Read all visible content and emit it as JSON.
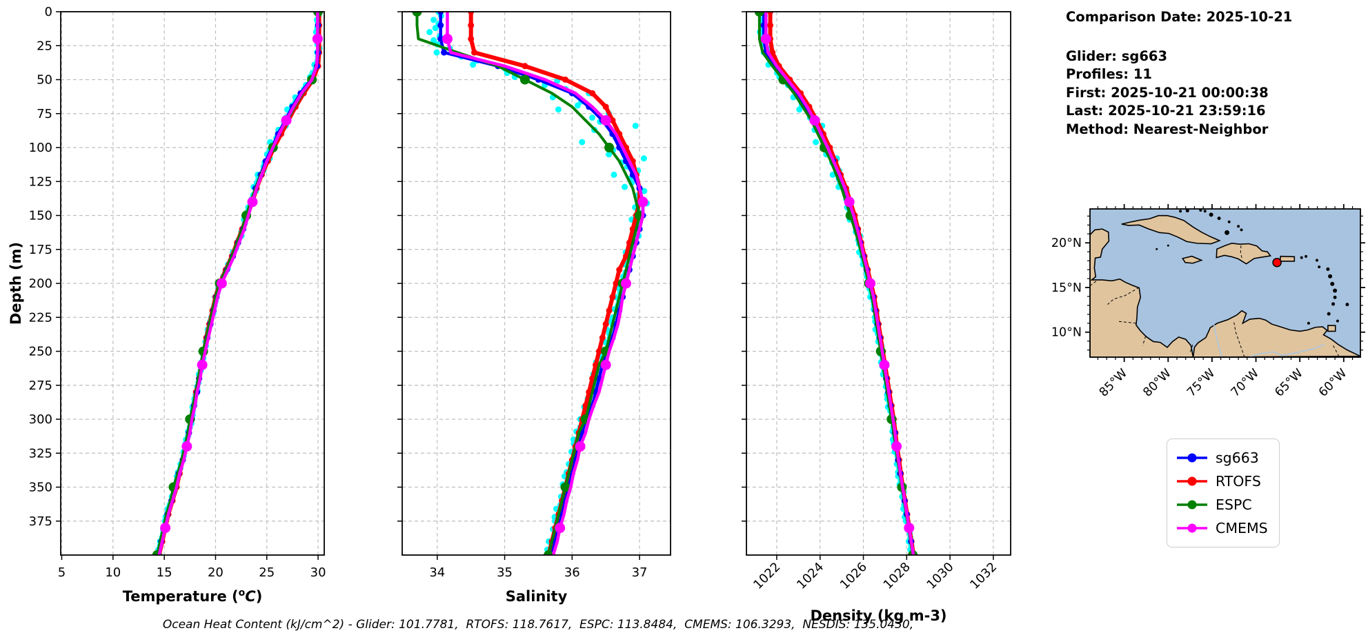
{
  "info": {
    "title": "Comparison Date: 2025-10-21",
    "lines": [
      "Glider: sg663",
      "Profiles: 11",
      "First: 2025-10-21 00:00:38",
      "Last: 2025-10-21 23:59:16",
      "Method: Nearest-Neighbor"
    ]
  },
  "footer": "Ocean Heat Content (kJ/cm^2) - Glider: 101.7781,  RTOFS: 118.7617,  ESPC: 113.8484,  CMEMS: 106.3293,  NESDIS: 135.0430,",
  "legend": {
    "items": [
      {
        "label": "sg663",
        "color": "#0000ff"
      },
      {
        "label": "RTOFS",
        "color": "#ff0000"
      },
      {
        "label": "ESPC",
        "color": "#008000"
      },
      {
        "label": "CMEMS",
        "color": "#ff00ff"
      }
    ]
  },
  "map": {
    "extent": {
      "lon_min": -88.9,
      "lon_max": -58.1,
      "lat_min": 7.2,
      "lat_max": 23.8
    },
    "lon_tick_values": [
      -85,
      -80,
      -75,
      -70,
      -65,
      -60
    ],
    "lon_tick_labels": [
      "85°W",
      "80°W",
      "75°W",
      "70°W",
      "65°W",
      "60°W"
    ],
    "lat_tick_values": [
      20,
      15,
      10
    ],
    "lat_tick_labels": [
      "20°N",
      "15°N",
      "10°N"
    ],
    "marker": {
      "lon": -67.6,
      "lat": 17.8,
      "color": "#ff0000"
    },
    "land_color": "#e0c49e",
    "ocean_color": "#a8c3df"
  },
  "chart_data": {
    "type": "line",
    "orientation": "vertical-profile",
    "ylabel": "Depth (m)",
    "depth_range": [
      0,
      400
    ],
    "depth_ticks": [
      0,
      25,
      50,
      75,
      100,
      125,
      150,
      175,
      200,
      225,
      250,
      275,
      300,
      325,
      350,
      375
    ],
    "depth_m": [
      0,
      10,
      20,
      30,
      40,
      50,
      60,
      70,
      80,
      90,
      100,
      110,
      120,
      130,
      140,
      150,
      160,
      170,
      180,
      190,
      200,
      210,
      220,
      230,
      240,
      250,
      260,
      270,
      280,
      290,
      300,
      310,
      320,
      330,
      340,
      350,
      360,
      370,
      380,
      390,
      400
    ],
    "grid": true,
    "legend_position": "lower-right-of-figure",
    "panels": [
      {
        "id": "temperature",
        "xlabel": {
          "prefix": "Temperature (",
          "sup": "o",
          "italic": "C",
          "suffix": ")"
        },
        "xlim": [
          4.9,
          30.6
        ],
        "x_ticks": [
          5,
          10,
          15,
          20,
          25,
          30
        ],
        "x_tick_rotation": 0,
        "scatter": {
          "name": "glider-raw-points",
          "color": "#00ffff",
          "base": 0.1,
          "extra": 0.28,
          "center_depth": 85,
          "width": 55,
          "offset": -0.05
        },
        "series": [
          {
            "name": "sg663",
            "color": "#0000ff",
            "values": [
              30,
              30,
              30,
              30,
              29.9,
              29.3,
              28.3,
              27.5,
              26.8,
              26.1,
              25.5,
              24.9,
              24.4,
              23.9,
              23.5,
              23.1,
              22.7,
              22.2,
              21.7,
              21.1,
              20.5,
              20.1,
              19.8,
              19.5,
              19.2,
              18.9,
              18.7,
              18.4,
              18.2,
              17.9,
              17.7,
              17.4,
              17.1,
              16.8,
              16.4,
              16.1,
              15.7,
              15.3,
              15,
              14.7,
              14.4
            ]
          },
          {
            "name": "RTOFS",
            "color": "#ff0000",
            "values": [
              30.1,
              30.1,
              30.1,
              30.1,
              30,
              29.5,
              28.6,
              27.8,
              27.1,
              26.4,
              25.7,
              25.1,
              24.5,
              24,
              23.6,
              23.1,
              22.6,
              22.1,
              21.6,
              21,
              20.4,
              20,
              19.7,
              19.4,
              19.1,
              18.9,
              18.6,
              18.4,
              18.1,
              17.9,
              17.6,
              17.4,
              17.1,
              16.8,
              16.5,
              16.2,
              15.8,
              15.4,
              15.1,
              14.8,
              14.5
            ]
          },
          {
            "name": "ESPC",
            "color": "#008000",
            "values": [
              30,
              30,
              30,
              30,
              29.8,
              29.4,
              28.5,
              27.7,
              27,
              26.2,
              25.6,
              25,
              24.4,
              23.9,
              23.4,
              23,
              22.6,
              22.1,
              21.6,
              21,
              20.4,
              20,
              19.7,
              19.4,
              19.1,
              18.8,
              18.6,
              18.3,
              18.1,
              17.8,
              17.5,
              17.3,
              17,
              16.7,
              16.3,
              15.9,
              15.6,
              15.2,
              14.9,
              14.6,
              14.3
            ]
          },
          {
            "name": "CMEMS",
            "color": "#ff00ff",
            "values": [
              29.95,
              29.95,
              29.95,
              29.95,
              29.85,
              29.4,
              28.4,
              27.6,
              26.9,
              26.2,
              25.6,
              25,
              24.5,
              24,
              23.6,
              23.2,
              22.8,
              22.3,
              21.8,
              21.2,
              20.6,
              20.2,
              19.9,
              19.6,
              19.3,
              19,
              18.7,
              18.5,
              18.2,
              18,
              17.7,
              17.5,
              17.2,
              16.9,
              16.5,
              16.2,
              15.8,
              15.4,
              15.1,
              14.8,
              14.5
            ]
          }
        ]
      },
      {
        "id": "salinity",
        "xlabel": {
          "prefix": "Salinity"
        },
        "xlim": [
          33.48,
          37.46
        ],
        "x_ticks": [
          34,
          35,
          36,
          37
        ],
        "x_tick_rotation": 0,
        "scatter": {
          "name": "glider-raw-points",
          "color": "#00ffff",
          "base": 0.06,
          "extra": 0.45,
          "center_depth": 80,
          "width": 45,
          "offset": -0.06
        },
        "series": [
          {
            "name": "sg663",
            "color": "#0000ff",
            "values": [
              34.05,
              34.05,
              34.05,
              34.1,
              34.9,
              35.5,
              36,
              36.25,
              36.45,
              36.6,
              36.7,
              36.8,
              36.9,
              37,
              37.05,
              37.05,
              37,
              36.95,
              36.9,
              36.85,
              36.8,
              36.75,
              36.7,
              36.65,
              36.6,
              36.5,
              36.45,
              36.4,
              36.35,
              36.3,
              36.2,
              36.15,
              36.1,
              36.05,
              36,
              35.95,
              35.9,
              35.85,
              35.8,
              35.75,
              35.7
            ]
          },
          {
            "name": "RTOFS",
            "color": "#ff0000",
            "values": [
              34.5,
              34.5,
              34.5,
              34.55,
              35.3,
              35.9,
              36.3,
              36.5,
              36.6,
              36.7,
              36.8,
              36.9,
              36.95,
              37,
              37,
              36.95,
              36.9,
              36.85,
              36.8,
              36.7,
              36.65,
              36.6,
              36.55,
              36.5,
              36.45,
              36.4,
              36.35,
              36.3,
              36.25,
              36.2,
              36.15,
              36.1,
              36.05,
              36,
              35.95,
              35.9,
              35.85,
              35.8,
              35.75,
              35.7,
              35.65
            ]
          },
          {
            "name": "ESPC",
            "color": "#008000",
            "values": [
              33.7,
              33.7,
              33.72,
              34.3,
              34.9,
              35.3,
              35.7,
              36,
              36.2,
              36.4,
              36.55,
              36.7,
              36.8,
              36.9,
              36.95,
              37,
              36.95,
              36.9,
              36.85,
              36.8,
              36.75,
              36.7,
              36.65,
              36.6,
              36.55,
              36.5,
              36.4,
              36.35,
              36.3,
              36.25,
              36.2,
              36.1,
              36.05,
              36,
              35.95,
              35.9,
              35.85,
              35.8,
              35.75,
              35.7,
              35.65
            ]
          },
          {
            "name": "CMEMS",
            "color": "#ff00ff",
            "values": [
              34.15,
              34.15,
              34.15,
              34.2,
              35,
              35.6,
              36.05,
              36.3,
              36.5,
              36.65,
              36.75,
              36.85,
              36.95,
              37,
              37.05,
              37.05,
              37,
              36.95,
              36.9,
              36.85,
              36.8,
              36.75,
              36.72,
              36.68,
              36.62,
              36.55,
              36.5,
              36.45,
              36.4,
              36.32,
              36.25,
              36.2,
              36.12,
              36.08,
              36.02,
              35.98,
              35.92,
              35.88,
              35.82,
              35.78,
              35.72
            ]
          }
        ]
      },
      {
        "id": "density",
        "xlabel": {
          "prefix": "Density (kg m-3)"
        },
        "xlim": [
          1020.6,
          1032.8
        ],
        "x_ticks": [
          1022,
          1024,
          1026,
          1028,
          1030,
          1032
        ],
        "x_tick_rotation": -45,
        "scatter": {
          "name": "glider-raw-points",
          "color": "#00ffff",
          "base": 0.09,
          "extra": 0.25,
          "center_depth": 85,
          "width": 55,
          "offset": -0.05
        },
        "series": [
          {
            "name": "sg663",
            "color": "#0000ff",
            "values": [
              1021.4,
              1021.4,
              1021.4,
              1021.5,
              1021.9,
              1022.4,
              1022.9,
              1023.3,
              1023.7,
              1024,
              1024.3,
              1024.6,
              1024.85,
              1025.1,
              1025.3,
              1025.5,
              1025.7,
              1025.85,
              1026,
              1026.15,
              1026.3,
              1026.45,
              1026.55,
              1026.65,
              1026.75,
              1026.85,
              1026.95,
              1027.05,
              1027.15,
              1027.25,
              1027.35,
              1027.45,
              1027.5,
              1027.6,
              1027.7,
              1027.8,
              1027.9,
              1028,
              1028.1,
              1028.2,
              1028.3
            ]
          },
          {
            "name": "RTOFS",
            "color": "#ff0000",
            "values": [
              1021.7,
              1021.7,
              1021.7,
              1021.8,
              1022.1,
              1022.6,
              1023.1,
              1023.5,
              1023.85,
              1024.15,
              1024.45,
              1024.7,
              1024.95,
              1025.2,
              1025.4,
              1025.6,
              1025.75,
              1025.9,
              1026.05,
              1026.2,
              1026.35,
              1026.5,
              1026.6,
              1026.7,
              1026.8,
              1026.9,
              1027,
              1027.1,
              1027.2,
              1027.3,
              1027.4,
              1027.48,
              1027.55,
              1027.65,
              1027.73,
              1027.82,
              1027.92,
              1028.02,
              1028.12,
              1028.22,
              1028.32
            ]
          },
          {
            "name": "ESPC",
            "color": "#008000",
            "values": [
              1021.2,
              1021.2,
              1021.2,
              1021.35,
              1021.8,
              1022.3,
              1022.8,
              1023.2,
              1023.6,
              1023.9,
              1024.2,
              1024.5,
              1024.75,
              1025,
              1025.2,
              1025.4,
              1025.6,
              1025.78,
              1025.95,
              1026.1,
              1026.25,
              1026.4,
              1026.5,
              1026.6,
              1026.7,
              1026.8,
              1026.9,
              1027,
              1027.1,
              1027.2,
              1027.3,
              1027.4,
              1027.48,
              1027.58,
              1027.68,
              1027.78,
              1027.88,
              1027.98,
              1028.08,
              1028.18,
              1028.28
            ]
          },
          {
            "name": "CMEMS",
            "color": "#ff00ff",
            "values": [
              1021.5,
              1021.5,
              1021.5,
              1021.6,
              1022,
              1022.5,
              1023,
              1023.4,
              1023.75,
              1024.05,
              1024.35,
              1024.62,
              1024.9,
              1025.15,
              1025.35,
              1025.55,
              1025.72,
              1025.88,
              1026.02,
              1026.18,
              1026.32,
              1026.47,
              1026.57,
              1026.67,
              1026.77,
              1026.87,
              1026.97,
              1027.07,
              1027.17,
              1027.27,
              1027.37,
              1027.46,
              1027.53,
              1027.62,
              1027.71,
              1027.81,
              1027.91,
              1028.01,
              1028.11,
              1028.21,
              1028.31
            ]
          }
        ]
      }
    ]
  }
}
